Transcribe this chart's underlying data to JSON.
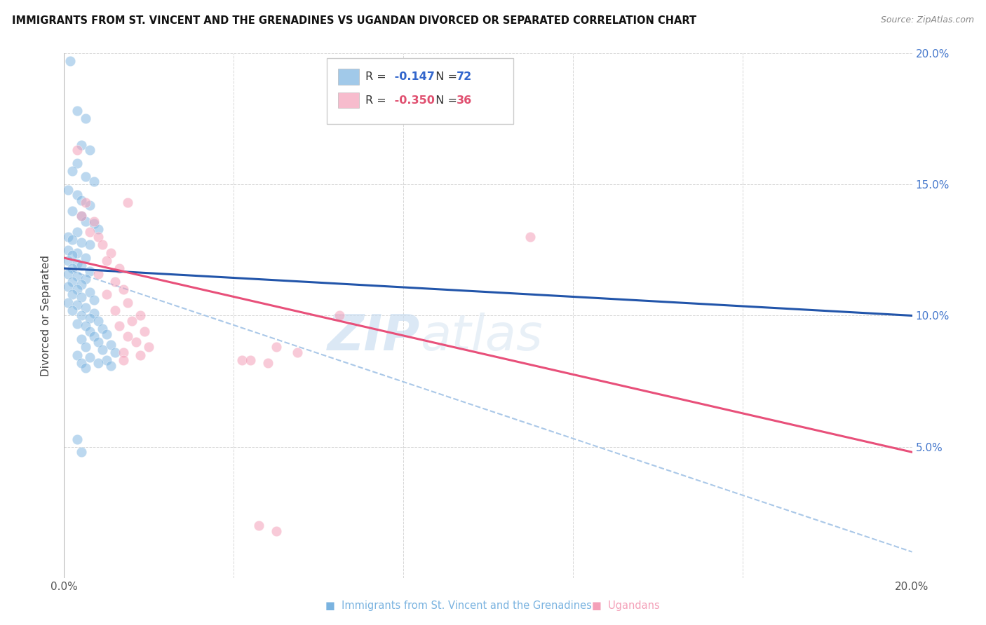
{
  "title": "IMMIGRANTS FROM ST. VINCENT AND THE GRENADINES VS UGANDAN DIVORCED OR SEPARATED CORRELATION CHART",
  "source": "Source: ZipAtlas.com",
  "ylabel": "Divorced or Separated",
  "x_min": 0.0,
  "x_max": 0.2,
  "y_min": 0.0,
  "y_max": 0.2,
  "x_ticks": [
    0.0,
    0.04,
    0.08,
    0.12,
    0.16,
    0.2
  ],
  "y_ticks": [
    0.0,
    0.05,
    0.1,
    0.15,
    0.2
  ],
  "legend_blue_label": "Immigrants from St. Vincent and the Grenadines",
  "legend_pink_label": "Ugandans",
  "legend_r_blue": "-0.147",
  "legend_n_blue": "72",
  "legend_r_pink": "-0.350",
  "legend_n_pink": "36",
  "blue_color": "#7ab3e0",
  "pink_color": "#f4a0b8",
  "trendline_blue_color": "#2255aa",
  "trendline_pink_color": "#e8507a",
  "trendline_dashed_color": "#aac8e8",
  "watermark_text": "ZIPatlas",
  "blue_points": [
    [
      0.0015,
      0.197
    ],
    [
      0.003,
      0.178
    ],
    [
      0.005,
      0.175
    ],
    [
      0.004,
      0.165
    ],
    [
      0.006,
      0.163
    ],
    [
      0.003,
      0.158
    ],
    [
      0.002,
      0.155
    ],
    [
      0.005,
      0.153
    ],
    [
      0.007,
      0.151
    ],
    [
      0.001,
      0.148
    ],
    [
      0.003,
      0.146
    ],
    [
      0.004,
      0.144
    ],
    [
      0.006,
      0.142
    ],
    [
      0.002,
      0.14
    ],
    [
      0.004,
      0.138
    ],
    [
      0.005,
      0.136
    ],
    [
      0.007,
      0.135
    ],
    [
      0.008,
      0.133
    ],
    [
      0.003,
      0.132
    ],
    [
      0.001,
      0.13
    ],
    [
      0.002,
      0.129
    ],
    [
      0.004,
      0.128
    ],
    [
      0.006,
      0.127
    ],
    [
      0.001,
      0.125
    ],
    [
      0.003,
      0.124
    ],
    [
      0.002,
      0.123
    ],
    [
      0.005,
      0.122
    ],
    [
      0.001,
      0.121
    ],
    [
      0.003,
      0.12
    ],
    [
      0.004,
      0.119
    ],
    [
      0.002,
      0.118
    ],
    [
      0.006,
      0.117
    ],
    [
      0.001,
      0.116
    ],
    [
      0.003,
      0.115
    ],
    [
      0.005,
      0.114
    ],
    [
      0.002,
      0.113
    ],
    [
      0.004,
      0.112
    ],
    [
      0.001,
      0.111
    ],
    [
      0.003,
      0.11
    ],
    [
      0.006,
      0.109
    ],
    [
      0.002,
      0.108
    ],
    [
      0.004,
      0.107
    ],
    [
      0.007,
      0.106
    ],
    [
      0.001,
      0.105
    ],
    [
      0.003,
      0.104
    ],
    [
      0.005,
      0.103
    ],
    [
      0.002,
      0.102
    ],
    [
      0.007,
      0.101
    ],
    [
      0.004,
      0.1
    ],
    [
      0.006,
      0.099
    ],
    [
      0.008,
      0.098
    ],
    [
      0.003,
      0.097
    ],
    [
      0.005,
      0.096
    ],
    [
      0.009,
      0.095
    ],
    [
      0.006,
      0.094
    ],
    [
      0.01,
      0.093
    ],
    [
      0.007,
      0.092
    ],
    [
      0.004,
      0.091
    ],
    [
      0.008,
      0.09
    ],
    [
      0.011,
      0.089
    ],
    [
      0.005,
      0.088
    ],
    [
      0.009,
      0.087
    ],
    [
      0.012,
      0.086
    ],
    [
      0.003,
      0.085
    ],
    [
      0.006,
      0.084
    ],
    [
      0.01,
      0.083
    ],
    [
      0.004,
      0.082
    ],
    [
      0.003,
      0.053
    ],
    [
      0.004,
      0.048
    ],
    [
      0.008,
      0.082
    ],
    [
      0.011,
      0.081
    ],
    [
      0.005,
      0.08
    ]
  ],
  "pink_points": [
    [
      0.003,
      0.163
    ],
    [
      0.005,
      0.143
    ],
    [
      0.004,
      0.138
    ],
    [
      0.007,
      0.136
    ],
    [
      0.006,
      0.132
    ],
    [
      0.015,
      0.143
    ],
    [
      0.008,
      0.13
    ],
    [
      0.009,
      0.127
    ],
    [
      0.011,
      0.124
    ],
    [
      0.01,
      0.121
    ],
    [
      0.013,
      0.118
    ],
    [
      0.008,
      0.116
    ],
    [
      0.012,
      0.113
    ],
    [
      0.014,
      0.11
    ],
    [
      0.01,
      0.108
    ],
    [
      0.015,
      0.105
    ],
    [
      0.012,
      0.102
    ],
    [
      0.018,
      0.1
    ],
    [
      0.016,
      0.098
    ],
    [
      0.013,
      0.096
    ],
    [
      0.019,
      0.094
    ],
    [
      0.015,
      0.092
    ],
    [
      0.017,
      0.09
    ],
    [
      0.02,
      0.088
    ],
    [
      0.014,
      0.086
    ],
    [
      0.018,
      0.085
    ],
    [
      0.05,
      0.088
    ],
    [
      0.065,
      0.1
    ],
    [
      0.11,
      0.13
    ],
    [
      0.055,
      0.086
    ],
    [
      0.042,
      0.083
    ],
    [
      0.048,
      0.082
    ],
    [
      0.044,
      0.083
    ],
    [
      0.046,
      0.02
    ],
    [
      0.05,
      0.018
    ],
    [
      0.014,
      0.083
    ]
  ],
  "blue_trend_x0": 0.0,
  "blue_trend_y0": 0.118,
  "blue_trend_x1": 0.2,
  "blue_trend_y1": 0.1,
  "pink_trend_x0": 0.0,
  "pink_trend_y0": 0.122,
  "pink_trend_x1": 0.2,
  "pink_trend_y1": 0.048,
  "dashed_trend_x0": 0.0,
  "dashed_trend_y0": 0.118,
  "dashed_trend_x1": 0.2,
  "dashed_trend_y1": 0.01
}
